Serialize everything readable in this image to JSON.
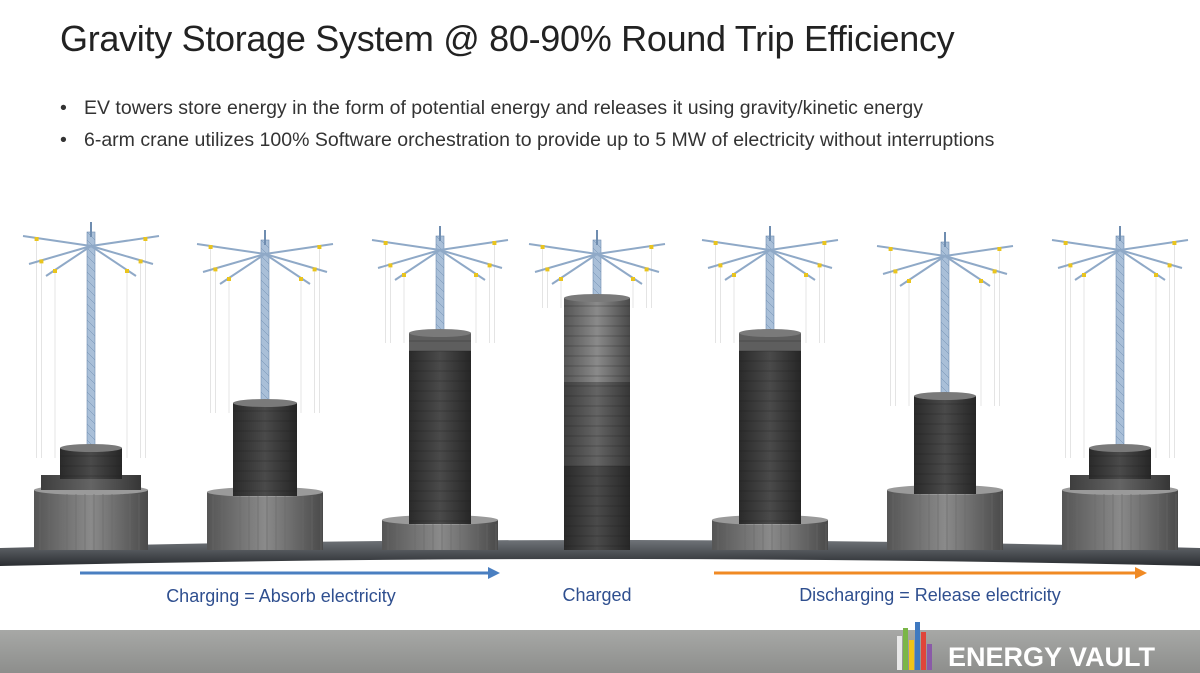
{
  "header": {
    "title": "Gravity Storage System @ 80-90% Round Trip Efficiency"
  },
  "bullets": [
    "EV towers store energy in the form of potential energy and releases it using gravity/kinetic energy",
    "6-arm crane utilizes 100% Software orchestration to provide up to 5 MW of electricity without interruptions"
  ],
  "stages": {
    "charging": "Charging = Absorb electricity",
    "charged": "Charged",
    "discharging": "Discharging = Release electricity"
  },
  "logo": {
    "text": "ENERGY VAULT"
  }
}
